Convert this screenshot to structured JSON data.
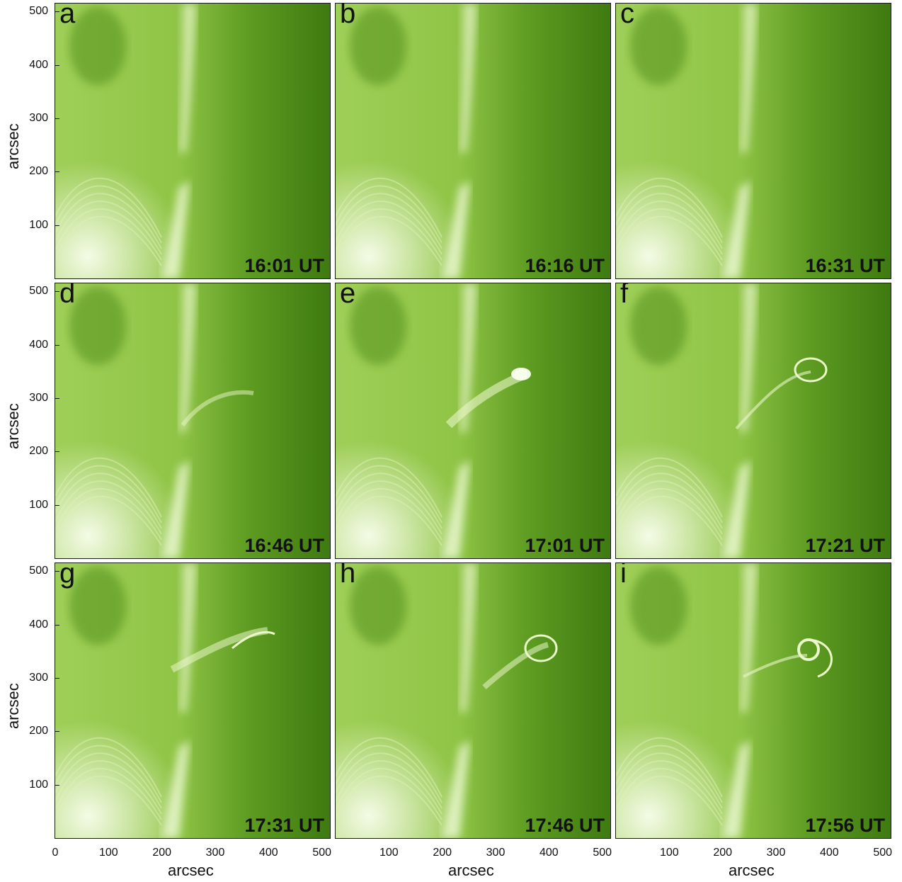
{
  "figure": {
    "axis_label_y": "arcsec",
    "axis_label_x": "arcsec",
    "y_ticks": [
      "500",
      "400",
      "300",
      "200",
      "100"
    ],
    "x_ticks": [
      "0",
      "100",
      "200",
      "300",
      "400",
      "500"
    ],
    "x_ticks_col23": [
      "100",
      "200",
      "300",
      "400",
      "500"
    ],
    "panels": [
      {
        "letter": "a",
        "time": "16:01 UT"
      },
      {
        "letter": "b",
        "time": "16:16 UT"
      },
      {
        "letter": "c",
        "time": "16:31 UT"
      },
      {
        "letter": "d",
        "time": "16:46 UT"
      },
      {
        "letter": "e",
        "time": "17:01 UT"
      },
      {
        "letter": "f",
        "time": "17:21 UT"
      },
      {
        "letter": "g",
        "time": "17:31 UT"
      },
      {
        "letter": "h",
        "time": "17:46 UT"
      },
      {
        "letter": "i",
        "time": "17:56 UT"
      }
    ],
    "colors": {
      "dark_green": "#3e7a10",
      "mid_green": "#8cc43a",
      "bright": "#f4fbe6"
    }
  }
}
